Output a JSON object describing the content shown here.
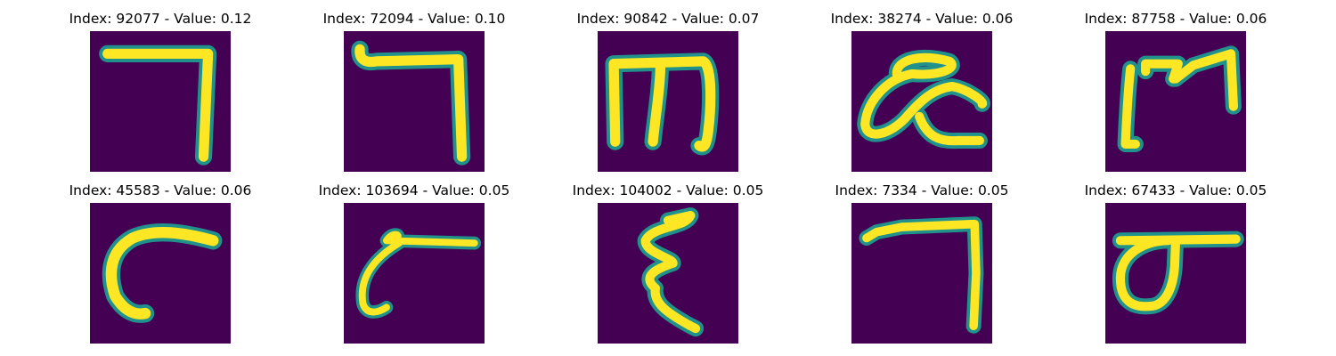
{
  "colors": {
    "background": "#440154",
    "mid": "#21918c",
    "highlight": "#fde725"
  },
  "panels": [
    {
      "title": "Index: 92077 - Value: 0.12",
      "glyph": "seven-shape"
    },
    {
      "title": "Index: 72094 - Value: 0.10",
      "glyph": "seven-shape-with-hook"
    },
    {
      "title": "Index: 90842 - Value: 0.07",
      "glyph": "m-shape"
    },
    {
      "title": "Index: 38274 - Value: 0.06",
      "glyph": "looped-ae-shape"
    },
    {
      "title": "Index: 87758 - Value: 0.06",
      "glyph": "open-m-shape"
    },
    {
      "title": "Index: 45583 - Value: 0.06",
      "glyph": "c-shape"
    },
    {
      "title": "Index: 103694 - Value: 0.05",
      "glyph": "c-with-bar-shape"
    },
    {
      "title": "Index: 104002 - Value: 0.05",
      "glyph": "epsilon-shape"
    },
    {
      "title": "Index: 7334 - Value: 0.05",
      "glyph": "seven-shape"
    },
    {
      "title": "Index: 67433 - Value: 0.05",
      "glyph": "sigma-shape"
    }
  ]
}
